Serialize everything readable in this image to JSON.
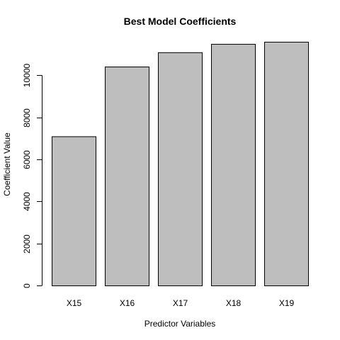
{
  "chart_data": {
    "type": "bar",
    "title": "Best Model Coefficients",
    "xlabel": "Predictor Variables",
    "ylabel": "Coefficient Value",
    "categories": [
      "X15",
      "X16",
      "X17",
      "X18",
      "X19"
    ],
    "values": [
      7100,
      10420,
      11100,
      11500,
      11600
    ],
    "ylim": [
      0,
      11600
    ],
    "yticks": [
      0,
      2000,
      4000,
      6000,
      8000,
      10000
    ],
    "ytick_labels": [
      "0",
      "2000",
      "4000",
      "6000",
      "8000",
      "10000"
    ],
    "bar_color": "#bebebe",
    "bar_border_color": "#000000",
    "grid": false,
    "legend": "none"
  }
}
